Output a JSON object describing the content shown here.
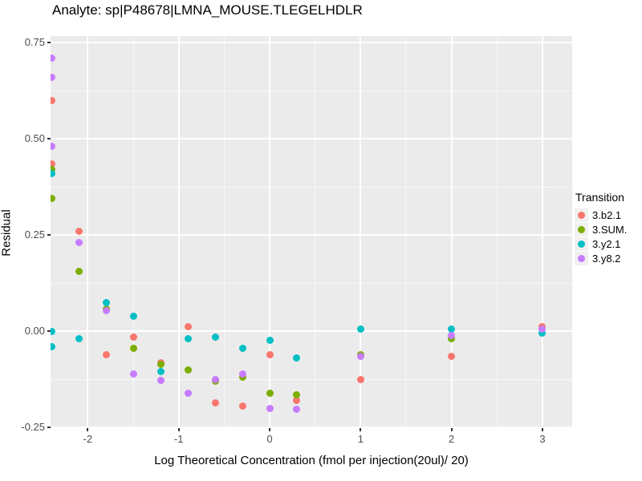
{
  "chart_data": {
    "type": "scatter",
    "title": "Analyte: sp|P48678|LMNA_MOUSE.TLEGELHDLR",
    "xlabel": "Log Theoretical Concentration (fmol per injection(20ul)/ 20)",
    "ylabel": "Residual",
    "xlim": [
      -2.41,
      3.33
    ],
    "ylim": [
      -0.252,
      0.768
    ],
    "x_ticks": {
      "values": [
        -2,
        -1,
        0,
        1,
        2,
        3
      ],
      "labels": [
        "-2",
        "-1",
        "0",
        "1",
        "2",
        "3"
      ]
    },
    "y_ticks": {
      "values": [
        0.75,
        0.5,
        0.25,
        0,
        -0.25
      ],
      "labels": [
        "0.75",
        "0.50",
        "0.25",
        "0.00",
        "-0.25"
      ]
    },
    "grid": "white major+minor gridlines on gray panel",
    "legend": {
      "title": "Transition",
      "position": "right"
    },
    "series": [
      {
        "name": "3.b2.1",
        "color": "#F8766D",
        "points": [
          [
            -2.4,
            0.6
          ],
          [
            -2.4,
            0.435
          ],
          [
            -2.1,
            0.26
          ],
          [
            -1.8,
            -0.06
          ],
          [
            -1.5,
            -0.015
          ],
          [
            -1.2,
            -0.082
          ],
          [
            -0.9,
            0.012
          ],
          [
            -0.6,
            -0.185
          ],
          [
            -0.3,
            -0.195
          ],
          [
            0,
            -0.06
          ],
          [
            0.3,
            -0.18
          ],
          [
            1,
            -0.125
          ],
          [
            2,
            -0.065
          ],
          [
            3,
            0.012
          ]
        ]
      },
      {
        "name": "3.SUM.",
        "color": "#7CAE00",
        "points": [
          [
            -2.4,
            0.42
          ],
          [
            -2.4,
            0.345
          ],
          [
            -2.1,
            0.155
          ],
          [
            -1.8,
            0.058
          ],
          [
            -1.5,
            -0.045
          ],
          [
            -1.2,
            -0.085
          ],
          [
            -0.9,
            -0.1
          ],
          [
            -0.6,
            -0.13
          ],
          [
            -0.3,
            -0.12
          ],
          [
            0,
            -0.16
          ],
          [
            0.3,
            -0.165
          ],
          [
            1,
            -0.06
          ],
          [
            2,
            -0.02
          ],
          [
            3,
            0.005
          ]
        ]
      },
      {
        "name": "3.y2.1",
        "color": "#00BFC4",
        "points": [
          [
            -2.4,
            0.41
          ],
          [
            -2.4,
            0.0
          ],
          [
            -2.4,
            -0.04
          ],
          [
            -2.1,
            -0.02
          ],
          [
            -1.8,
            0.075
          ],
          [
            -1.5,
            0.04
          ],
          [
            -1.2,
            -0.105
          ],
          [
            -0.9,
            -0.02
          ],
          [
            -0.6,
            -0.015
          ],
          [
            -0.3,
            -0.045
          ],
          [
            0,
            -0.023
          ],
          [
            0.3,
            -0.07
          ],
          [
            1,
            0.005
          ],
          [
            2,
            0.005
          ],
          [
            3,
            -0.005
          ]
        ]
      },
      {
        "name": "3.y8.2",
        "color": "#C77CFF",
        "points": [
          [
            -2.4,
            0.71
          ],
          [
            -2.4,
            0.66
          ],
          [
            -2.4,
            0.48
          ],
          [
            -2.1,
            0.23
          ],
          [
            -1.8,
            0.053
          ],
          [
            -1.5,
            -0.11
          ],
          [
            -1.2,
            -0.128
          ],
          [
            -0.9,
            -0.16
          ],
          [
            -0.6,
            -0.125
          ],
          [
            -0.3,
            -0.11
          ],
          [
            0,
            -0.2
          ],
          [
            0.3,
            -0.202
          ],
          [
            1,
            -0.065
          ],
          [
            2,
            -0.01
          ],
          [
            3,
            0.005
          ]
        ]
      }
    ]
  },
  "colors": {
    "panel_background": "#EBEBEB",
    "gridline": "#FFFFFF",
    "tick_label": "#4D4D4D",
    "tick_mark": "#333333",
    "text": "#000000",
    "legend_key_background": "#F0F0F0"
  }
}
